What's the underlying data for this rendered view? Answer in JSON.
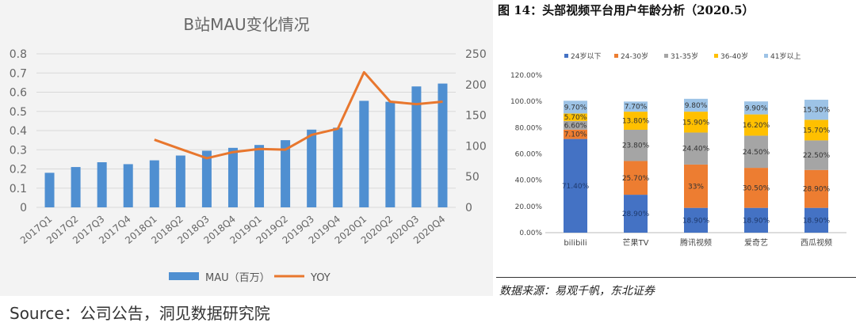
{
  "left_chart": {
    "chart_data": {
      "type": "bar+line",
      "title": "B站MAU变化情况",
      "categories": [
        "2017Q1",
        "2017Q2",
        "2017Q3",
        "2017Q4",
        "2018Q1",
        "2018Q2",
        "2018Q3",
        "2018Q4",
        "2019Q1",
        "2019Q2",
        "2019Q3",
        "2019Q4",
        "2020Q1",
        "2020Q2",
        "2020Q3",
        "2020Q4"
      ],
      "series": [
        {
          "name": "MAU（百万）",
          "type": "bar",
          "axis": "left",
          "values": [
            0.18,
            0.21,
            0.235,
            0.225,
            0.245,
            0.27,
            0.295,
            0.31,
            0.325,
            0.35,
            0.405,
            0.415,
            0.555,
            0.55,
            0.63,
            0.645
          ]
        },
        {
          "name": "YOY",
          "type": "line",
          "axis": "right",
          "values": [
            null,
            null,
            null,
            null,
            110,
            95,
            80,
            90,
            95,
            94,
            118,
            128,
            220,
            172,
            168,
            172
          ]
        }
      ],
      "ylim_left": [
        0,
        0.8
      ],
      "yticks_left": [
        "0",
        "0.1",
        "0.2",
        "0.3",
        "0.4",
        "0.5",
        "0.6",
        "0.7",
        "0.8"
      ],
      "ylim_right": [
        0,
        250
      ],
      "yticks_right": [
        "0",
        "50",
        "100",
        "150",
        "200",
        "250"
      ],
      "grid": true,
      "legend": "bottom",
      "colors": {
        "bar": "#4f8fd1",
        "line": "#e8772e"
      }
    },
    "source": "Source：公司公告，洞见数据研究院"
  },
  "right_chart": {
    "chart_data": {
      "type": "bar",
      "stacked": true,
      "title": "图 14：头部视频平台用户年龄分析（2020.5）",
      "categories": [
        "bilibili",
        "芒果TV",
        "腾讯视频",
        "爱奇艺",
        "西瓜视频"
      ],
      "series": [
        {
          "name": "24岁以下",
          "values": [
            71.4,
            28.9,
            18.9,
            18.9,
            18.9
          ],
          "labels": [
            "71.40%",
            "28.90%",
            "18.90%",
            "18.90%",
            "18.90%"
          ]
        },
        {
          "name": "24-30岁",
          "values": [
            7.1,
            25.7,
            33,
            30.5,
            28.9
          ],
          "labels": [
            "7.10%",
            "25.70%",
            "33%",
            "30.50%",
            "28.90%"
          ]
        },
        {
          "name": "31-35岁",
          "values": [
            6.6,
            23.8,
            24.4,
            24.5,
            22.5
          ],
          "labels": [
            "6.60%",
            "23.80%",
            "24.40%",
            "24.50%",
            "22.50%"
          ]
        },
        {
          "name": "36-40岁",
          "values": [
            5.7,
            13.8,
            15.9,
            16.2,
            15.7
          ],
          "labels": [
            "5.70%",
            "13.80%",
            "15.90%",
            "16.20%",
            "15.70%"
          ]
        },
        {
          "name": "41岁以上",
          "values": [
            9.7,
            7.7,
            9.8,
            9.9,
            15.3
          ],
          "labels": [
            "9.70%",
            "7.70%",
            "9.80%",
            "9.90%",
            "15.30%"
          ]
        }
      ],
      "ylim": [
        0,
        120
      ],
      "yticks": [
        "0.00%",
        "20.00%",
        "40.00%",
        "60.00%",
        "80.00%",
        "100.00%",
        "120.00%"
      ],
      "legend": "top",
      "colors": [
        "#4472c4",
        "#ed7d31",
        "#a5a5a5",
        "#ffc000",
        "#9dc3e6"
      ]
    },
    "source": "数据来源：易观千帆，东北证券"
  }
}
